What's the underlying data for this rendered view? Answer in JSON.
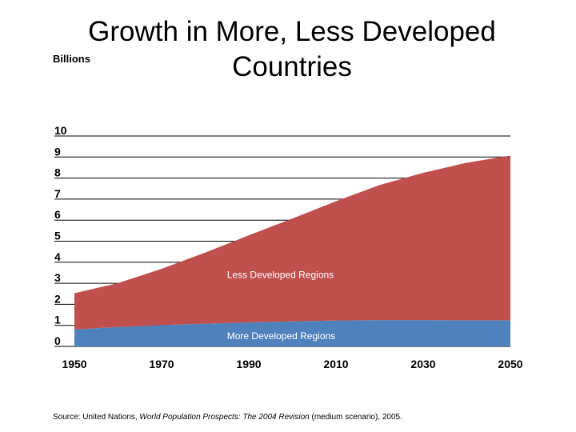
{
  "chart_data": {
    "type": "area",
    "title_line1": "Growth in More, Less Developed",
    "title_line2": "Countries",
    "ylabel": "Billions",
    "xlabel": "",
    "stacked": true,
    "x": [
      1950,
      1960,
      1970,
      1980,
      1990,
      2000,
      2010,
      2020,
      2030,
      2040,
      2050
    ],
    "xticks": [
      "1950",
      "1970",
      "1990",
      "2010",
      "2030",
      "2050"
    ],
    "yticks": [
      "0",
      "1",
      "2",
      "3",
      "4",
      "5",
      "6",
      "7",
      "8",
      "9",
      "10"
    ],
    "xlim": [
      1950,
      2050
    ],
    "ylim": [
      0,
      10
    ],
    "grid": true,
    "series": [
      {
        "name": "More Developed Regions",
        "color": "#4f81bd",
        "values": [
          0.81,
          0.92,
          1.01,
          1.08,
          1.14,
          1.19,
          1.23,
          1.25,
          1.25,
          1.24,
          1.24
        ]
      },
      {
        "name": "Less Developed Regions",
        "color": "#c0504d",
        "values": [
          1.72,
          2.09,
          2.68,
          3.38,
          4.14,
          4.89,
          5.67,
          6.42,
          7.0,
          7.49,
          7.83
        ]
      }
    ],
    "source_prefix": "Source: United Nations, ",
    "source_italic": "World Population Prospects: The 2004 Revision",
    "source_suffix": " (medium scenario), 2005."
  }
}
